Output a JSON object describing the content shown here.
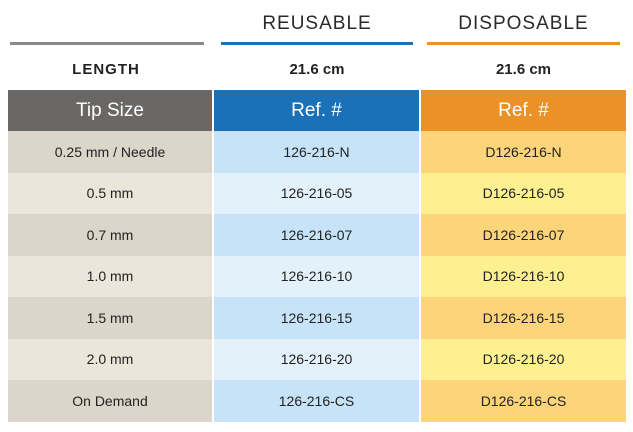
{
  "columns": {
    "reusable": "REUSABLE",
    "disposable": "DISPOSABLE"
  },
  "colors": {
    "rule_left": "#8a8a8a",
    "rule_reusable": "#1a71b8",
    "rule_disposable": "#ea9128"
  },
  "length": {
    "label": "LENGTH",
    "reusable": "21.6 cm",
    "disposable": "21.6 cm"
  },
  "header": {
    "tip_size": "Tip Size",
    "ref_reusable": "Ref. #",
    "ref_disposable": "Ref. #"
  },
  "rows": [
    {
      "tip": "0.25 mm / Needle",
      "reusable": "126-216-N",
      "disposable": "D126-216-N"
    },
    {
      "tip": "0.5 mm",
      "reusable": "126-216-05",
      "disposable": "D126-216-05"
    },
    {
      "tip": "0.7 mm",
      "reusable": "126-216-07",
      "disposable": "D126-216-07"
    },
    {
      "tip": "1.0 mm",
      "reusable": "126-216-10",
      "disposable": "D126-216-10"
    },
    {
      "tip": "1.5 mm",
      "reusable": "126-216-15",
      "disposable": "D126-216-15"
    },
    {
      "tip": "2.0 mm",
      "reusable": "126-216-20",
      "disposable": "D126-216-20"
    },
    {
      "tip": "On Demand",
      "reusable": "126-216-CS",
      "disposable": "D126-216-CS"
    }
  ]
}
